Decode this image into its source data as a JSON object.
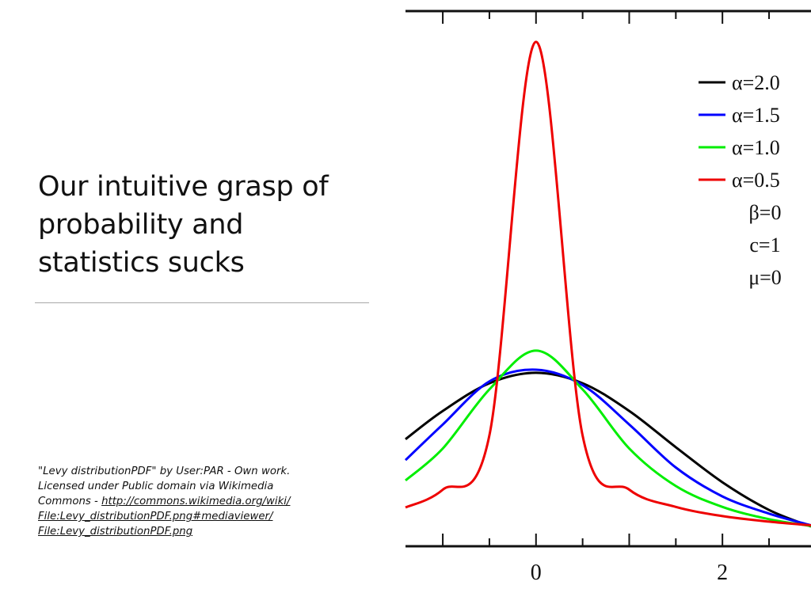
{
  "slide": {
    "title_lines": [
      "Our intuitive grasp of",
      "probability and",
      "statistics sucks"
    ],
    "credit": {
      "line1": "\"Levy distributionPDF\" by User:PAR - Own work.",
      "line2": "Licensed under Public domain via Wikimedia",
      "line3_prefix": "Commons - ",
      "line3_link": "http://commons.wikimedia.org/wiki/",
      "line4": "File:Levy_distributionPDF.png#mediaviewer/",
      "line5": "File:Levy_distributionPDF.png"
    }
  },
  "chart_data": {
    "type": "line",
    "title": "",
    "xlabel": "",
    "ylabel": "",
    "xlim": [
      -1.4,
      2.95
    ],
    "ylim": [
      0,
      0.87
    ],
    "x_ticks": [
      0,
      2
    ],
    "x_tick_labels": [
      "0",
      "2"
    ],
    "grid": false,
    "legend_position": "top-right",
    "series": [
      {
        "name": "α=2.0",
        "color": "#000000",
        "x": [
          -1.4,
          -1,
          -0.5,
          0,
          0.5,
          1,
          1.5,
          2,
          2.5,
          2.95
        ],
        "y": [
          0.174,
          0.22,
          0.265,
          0.282,
          0.265,
          0.22,
          0.161,
          0.104,
          0.059,
          0.032
        ]
      },
      {
        "name": "α=1.5",
        "color": "#0000ff",
        "x": [
          -1.4,
          -1,
          -0.5,
          0,
          0.5,
          1,
          1.5,
          2,
          2.5,
          2.95
        ],
        "y": [
          0.14,
          0.198,
          0.268,
          0.287,
          0.262,
          0.198,
          0.128,
          0.081,
          0.053,
          0.034
        ]
      },
      {
        "name": "α=1.0",
        "color": "#00ee00",
        "x": [
          -1.4,
          -1,
          -0.5,
          0,
          0.5,
          1,
          1.5,
          2,
          2.5,
          2.95
        ],
        "y": [
          0.107,
          0.159,
          0.255,
          0.318,
          0.255,
          0.159,
          0.098,
          0.064,
          0.044,
          0.033
        ]
      },
      {
        "name": "α=0.5",
        "color": "#ee0000",
        "x": [
          -1.4,
          -1,
          -0.5,
          0,
          0.5,
          1,
          1.5,
          2,
          2.5,
          2.95
        ],
        "y": [
          0.063,
          0.092,
          0.18,
          0.82,
          0.18,
          0.092,
          0.064,
          0.049,
          0.04,
          0.034
        ]
      }
    ],
    "parameters": [
      "β=0",
      "c=1",
      "μ=0"
    ]
  }
}
